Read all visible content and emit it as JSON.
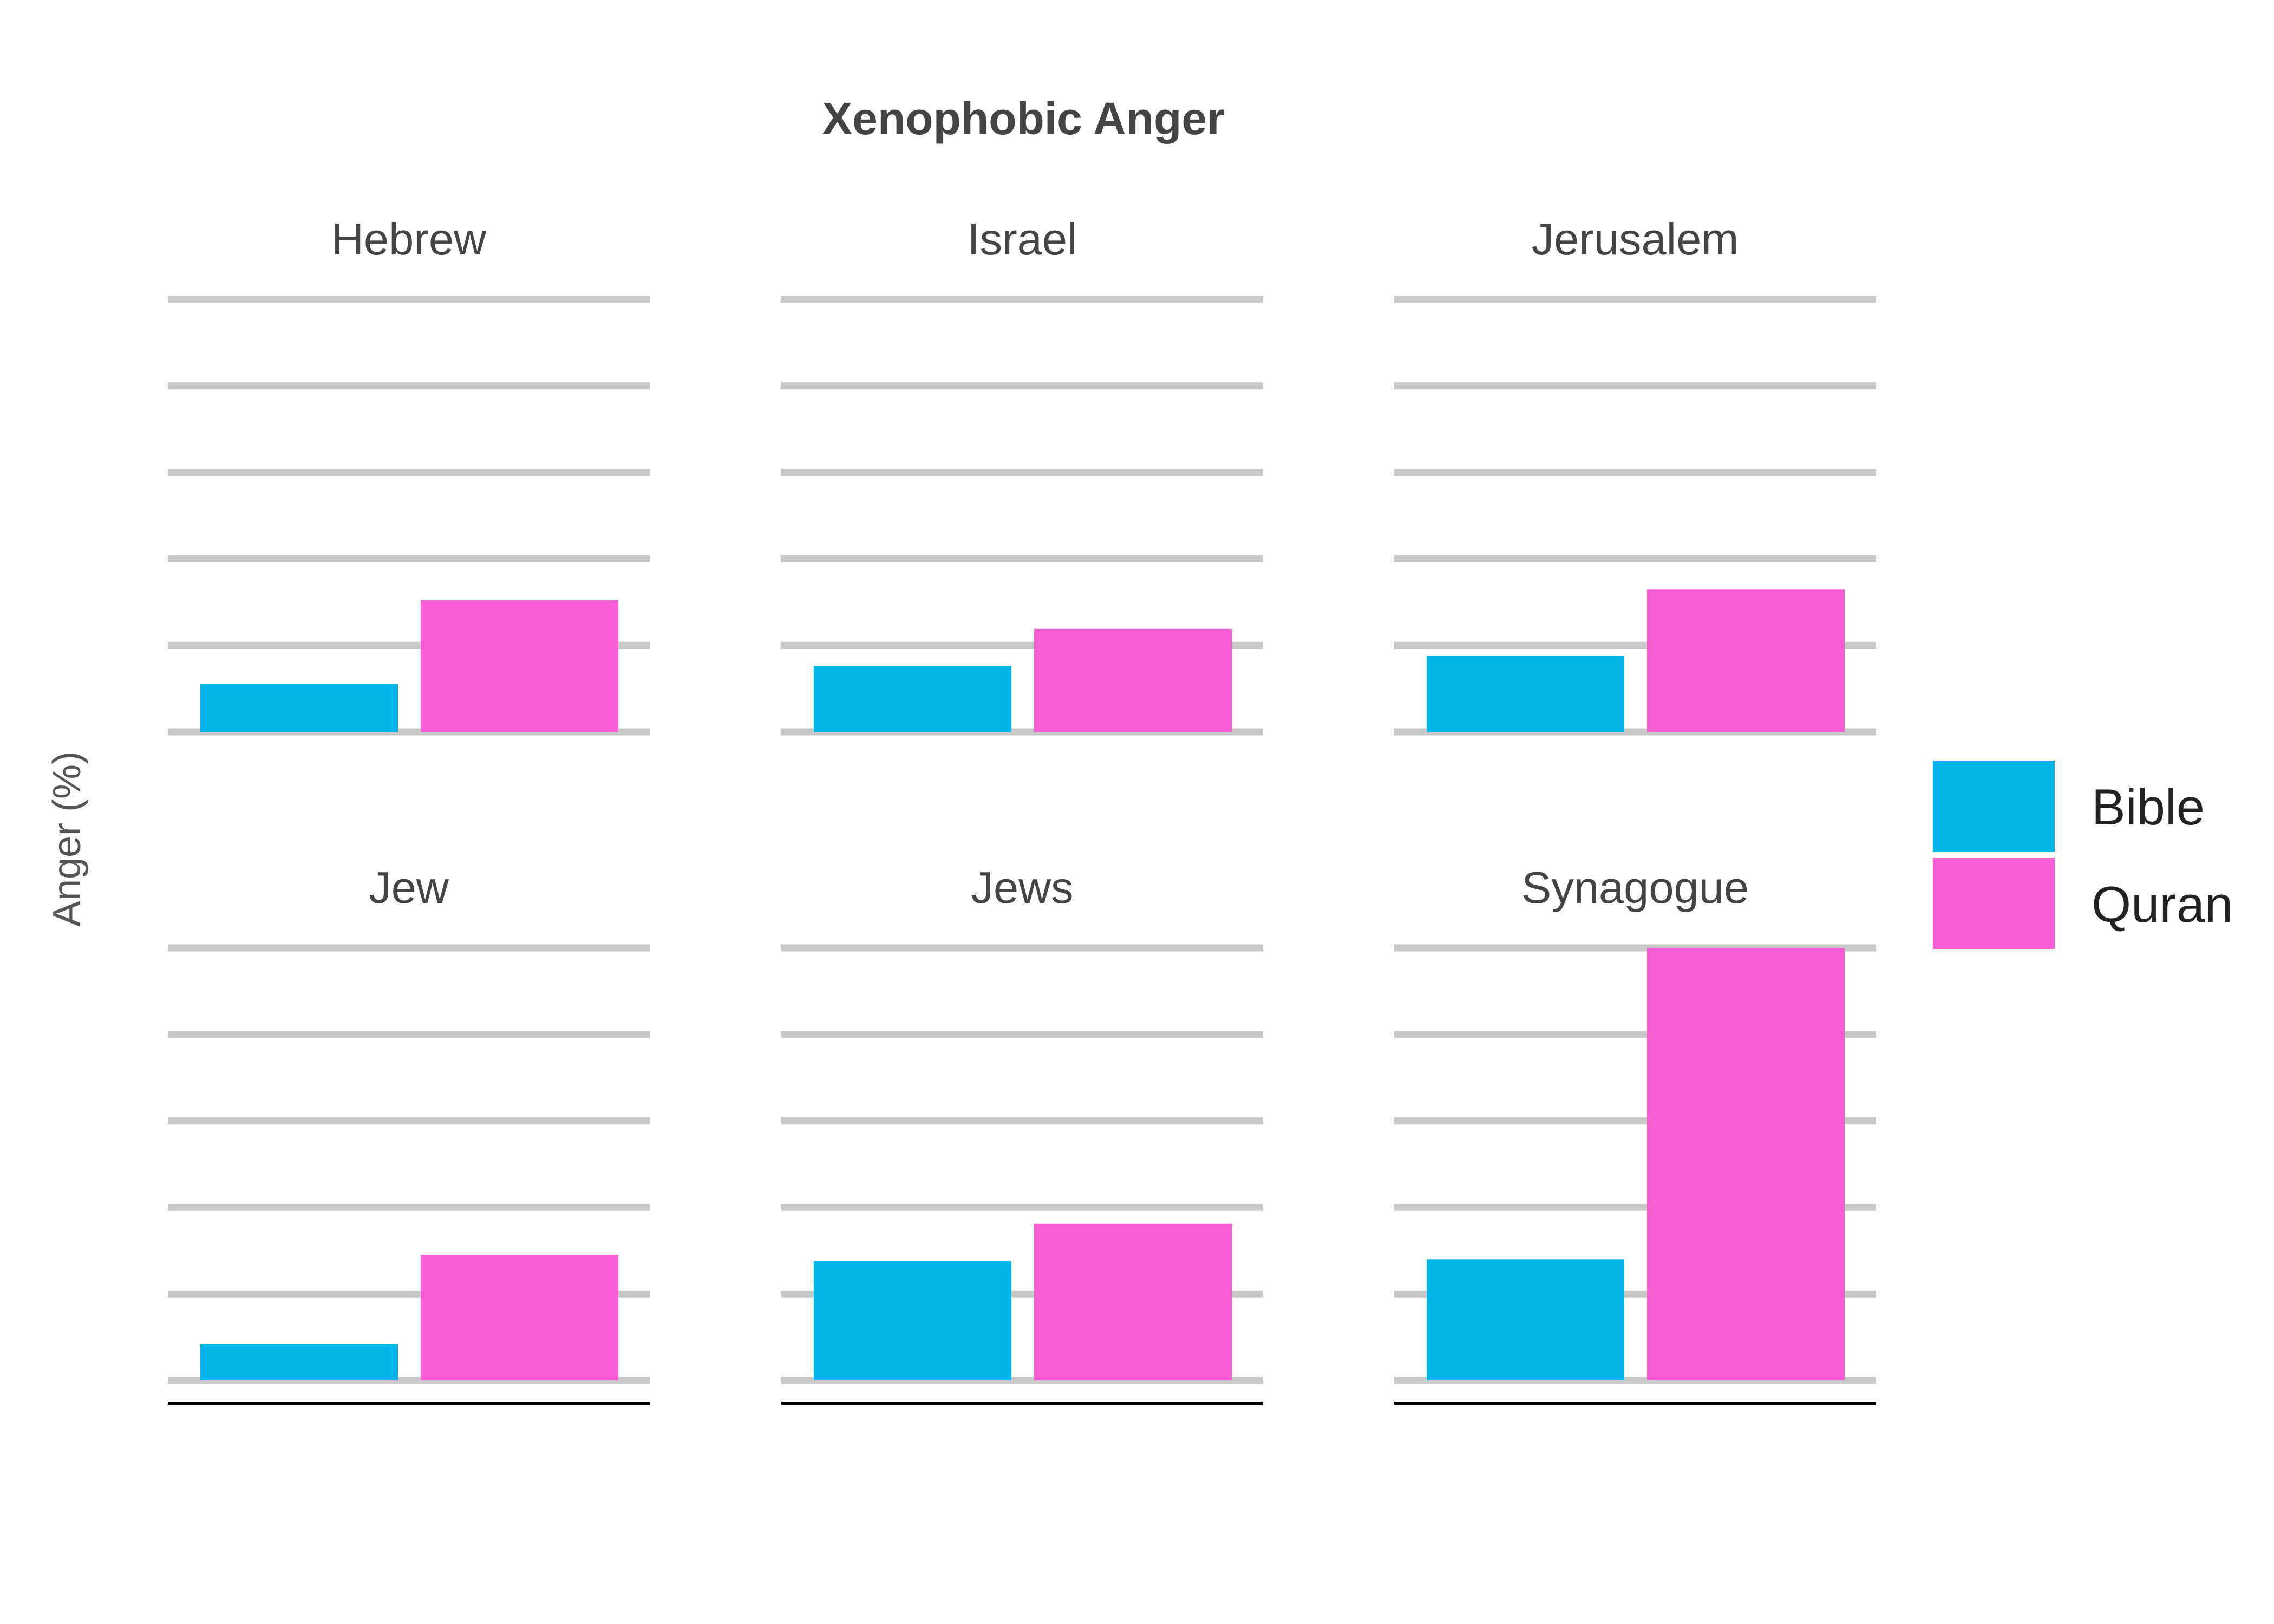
{
  "chart_data": {
    "type": "bar",
    "title": "Xenophobic Anger",
    "ylabel": "Anger (%)",
    "xlabel": "",
    "ylim": [
      0,
      5
    ],
    "grid": true,
    "legend_position": "right",
    "series_order": [
      "Bible",
      "Quran"
    ],
    "colors": {
      "Bible": "#00b5e9",
      "Quran": "#f95fd4"
    },
    "panels": [
      {
        "name": "Hebrew",
        "values": {
          "Bible": 0.55,
          "Quran": 1.52
        }
      },
      {
        "name": "Israel",
        "values": {
          "Bible": 0.76,
          "Quran": 1.19
        }
      },
      {
        "name": "Jerusalem",
        "values": {
          "Bible": 0.88,
          "Quran": 1.65
        }
      },
      {
        "name": "Jew",
        "values": {
          "Bible": 0.42,
          "Quran": 1.45
        }
      },
      {
        "name": "Jews",
        "values": {
          "Bible": 1.38,
          "Quran": 1.81
        }
      },
      {
        "name": "Synagogue",
        "values": {
          "Bible": 1.4,
          "Quran": 5.0
        }
      }
    ]
  }
}
